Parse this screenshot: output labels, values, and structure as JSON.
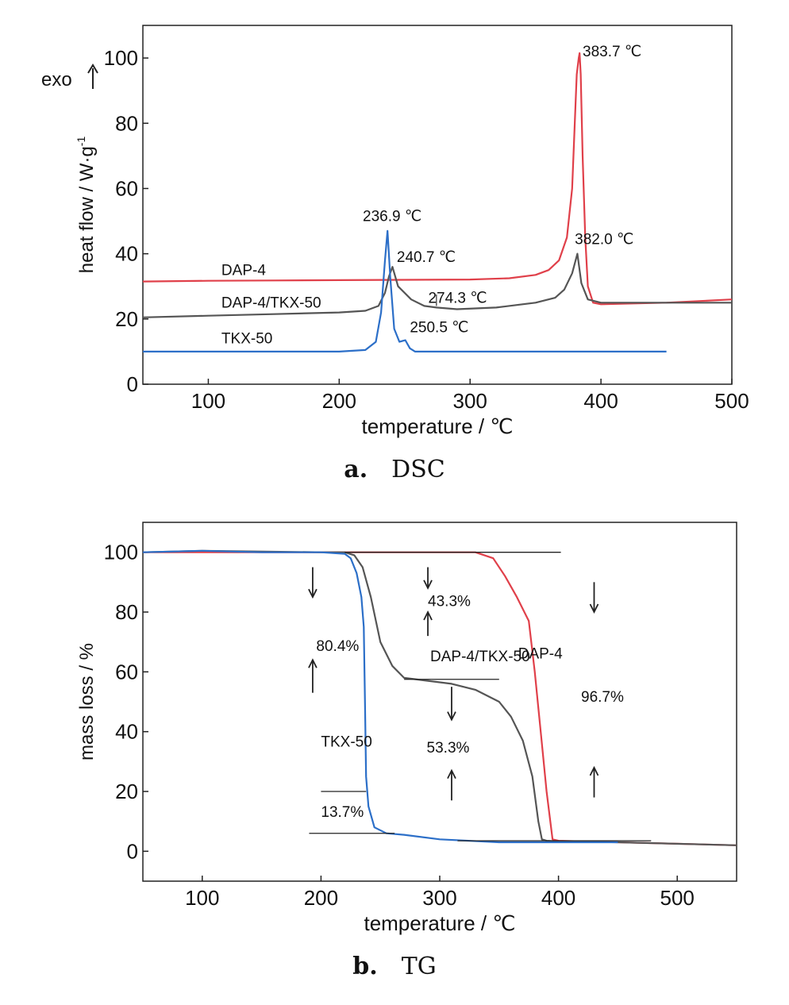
{
  "chart_data": [
    {
      "type": "line",
      "panel_letter": "a.",
      "panel_title": "DSC",
      "xlabel": "temperature / ℃",
      "ylabel": "heat flow / W·g",
      "ylabel_sup": "-1",
      "direction_label": "exo",
      "xlim": [
        50,
        500
      ],
      "ylim": [
        0,
        110
      ],
      "xticks": [
        100,
        200,
        300,
        400,
        500
      ],
      "yticks": [
        0,
        20,
        40,
        60,
        80,
        100
      ],
      "grid": false,
      "series": [
        {
          "name": "DAP-4",
          "color": "#e0404a",
          "x": [
            50,
            100,
            150,
            200,
            250,
            300,
            330,
            350,
            360,
            368,
            374,
            378,
            380,
            381.5,
            383,
            383.7,
            384.5,
            386,
            388,
            390,
            394,
            400,
            450,
            500
          ],
          "y": [
            31.5,
            31.7,
            31.8,
            31.9,
            32,
            32.1,
            32.5,
            33.5,
            35,
            38,
            45,
            60,
            80,
            95,
            100,
            101.5,
            95,
            70,
            45,
            30,
            25,
            24.5,
            25,
            26
          ]
        },
        {
          "name": "DAP-4/TKX-50",
          "color": "#555555",
          "x": [
            50,
            100,
            150,
            200,
            220,
            230,
            235,
            238,
            240.7,
            245,
            255,
            265,
            274.3,
            290,
            320,
            350,
            365,
            372,
            378,
            382,
            385,
            390,
            400,
            450,
            500
          ],
          "y": [
            20.5,
            21,
            21.5,
            22,
            22.5,
            24,
            28,
            33,
            36,
            30,
            26,
            24,
            23.5,
            23,
            23.5,
            25,
            26.5,
            29,
            34,
            40,
            31,
            26,
            25,
            25,
            25
          ]
        },
        {
          "name": "TKX-50",
          "color": "#2c6fc8",
          "x": [
            50,
            100,
            150,
            200,
            220,
            228,
            232,
            235,
            236.9,
            239,
            242,
            246,
            250.5,
            254,
            258,
            270,
            300,
            350,
            400,
            450
          ],
          "y": [
            10,
            10,
            10,
            10,
            10.5,
            13,
            22,
            38,
            47,
            33,
            17,
            13,
            13.5,
            11,
            10,
            10,
            10,
            10,
            10,
            10
          ]
        }
      ],
      "annotations": [
        {
          "text": "383.7 ℃",
          "x": 386,
          "y": 100.5
        },
        {
          "text": "382.0 ℃",
          "x": 380,
          "y": 43
        },
        {
          "text": "236.9 ℃",
          "x": 218,
          "y": 50
        },
        {
          "text": "240.7 ℃",
          "x": 244,
          "y": 37.5
        },
        {
          "text": "274.3 ℃",
          "x": 268,
          "y": 25
        },
        {
          "text": "250.5 ℃",
          "x": 254,
          "y": 16
        },
        {
          "text": "DAP-4",
          "x": 110,
          "y": 33.5
        },
        {
          "text": "DAP-4/TKX-50",
          "x": 110,
          "y": 23.5
        },
        {
          "text": "TKX-50",
          "x": 110,
          "y": 12.5
        }
      ]
    },
    {
      "type": "line",
      "panel_letter": "b.",
      "panel_title": "TG",
      "xlabel": "temperature / ℃",
      "ylabel": "mass loss / %",
      "xlim": [
        50,
        550
      ],
      "ylim": [
        -10,
        110
      ],
      "xticks": [
        100,
        200,
        300,
        400,
        500
      ],
      "yticks": [
        0,
        20,
        40,
        60,
        80,
        100
      ],
      "grid": false,
      "series": [
        {
          "name": "DAP-4",
          "color": "#e0404a",
          "x": [
            50,
            100,
            200,
            300,
            330,
            345,
            355,
            365,
            375,
            380,
            385,
            390,
            395,
            400,
            450,
            500,
            550
          ],
          "y": [
            100,
            100,
            100,
            100,
            100,
            98,
            92,
            85,
            77,
            60,
            40,
            20,
            4,
            3.5,
            3,
            2.5,
            2
          ]
        },
        {
          "name": "DAP-4/TKX-50",
          "color": "#555555",
          "x": [
            50,
            100,
            200,
            220,
            228,
            235,
            242,
            250,
            260,
            270,
            290,
            310,
            330,
            350,
            360,
            370,
            378,
            383,
            386,
            390,
            400,
            450,
            550
          ],
          "y": [
            100,
            100.5,
            100,
            100,
            99,
            95,
            85,
            70,
            62,
            58,
            57,
            56,
            54,
            50,
            45,
            37,
            25,
            10,
            4,
            3.5,
            3.3,
            3,
            2
          ]
        },
        {
          "name": "TKX-50",
          "color": "#2c6fc8",
          "x": [
            50,
            100,
            150,
            200,
            220,
            225,
            230,
            234,
            236,
            237,
            238,
            239,
            240,
            245,
            255,
            270,
            300,
            350,
            400,
            450
          ],
          "y": [
            100,
            100.5,
            100,
            100,
            99.5,
            98,
            93,
            85,
            75,
            50,
            25,
            20,
            15,
            8,
            6,
            5.5,
            4,
            3,
            3,
            3
          ]
        }
      ],
      "annotations": [
        {
          "text": "43.3%",
          "x": 290,
          "y": 82
        },
        {
          "text": "80.4%",
          "x": 196,
          "y": 67
        },
        {
          "text": "DAP-4/TKX-50",
          "x": 292,
          "y": 63.5
        },
        {
          "text": "DAP-4",
          "x": 366,
          "y": 64.5
        },
        {
          "text": "96.7%",
          "x": 419,
          "y": 50
        },
        {
          "text": "TKX-50",
          "x": 200,
          "y": 35
        },
        {
          "text": "53.3%",
          "x": 289,
          "y": 33
        },
        {
          "text": "13.7%",
          "x": 200,
          "y": 11.5
        }
      ]
    }
  ]
}
